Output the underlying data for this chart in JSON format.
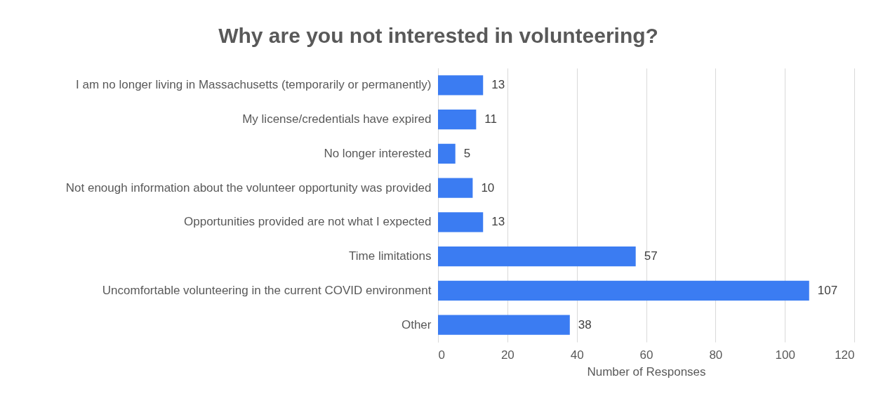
{
  "chart_data": {
    "type": "bar",
    "orientation": "horizontal",
    "title": "Why are you not interested in volunteering?",
    "xlabel": "Number of Responses",
    "categories": [
      "I am no longer living in Massachusetts (temporarily or permanently)",
      "My license/credentials have expired",
      "No longer interested",
      "Not enough information about the volunteer opportunity was provided",
      "Opportunities provided are not what I expected",
      "Time limitations",
      "Uncomfortable volunteering in the current COVID environment",
      "Other"
    ],
    "values": [
      13,
      11,
      5,
      10,
      13,
      57,
      107,
      38
    ],
    "color": "#3b7cf2",
    "xlim": [
      0,
      120
    ],
    "xticks": [
      0,
      20,
      40,
      60,
      80,
      100,
      120
    ],
    "grid": "x",
    "data_labels": true
  }
}
